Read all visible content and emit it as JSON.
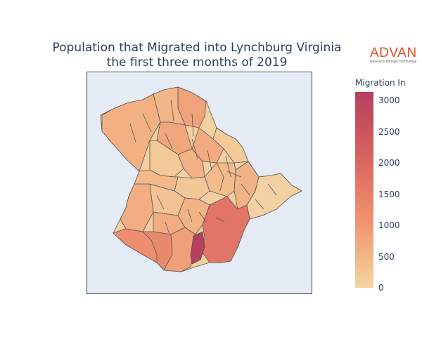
{
  "title_line1": "Population that Migrated into Lynchburg Virginia",
  "title_line2": "the first three months of 2019",
  "logo": {
    "word": "ADVAN",
    "tagline": "Research through Technology",
    "color": "#e2502a"
  },
  "legend": {
    "title": "Migration In",
    "range": [
      0,
      3150
    ],
    "ticks": [
      "3000",
      "2500",
      "2000",
      "1500",
      "1000",
      "500",
      "0"
    ],
    "colors": [
      "#f4d5a4",
      "#b8405e"
    ]
  },
  "chart_data": {
    "type": "choropleth",
    "region": "Lynchburg, Virginia",
    "colorscale": "sunsetdark-like",
    "value_range": [
      0,
      3150
    ],
    "approx_region_values": {
      "south_large_tract": 1500,
      "south_small_tract": 3100,
      "southwest_tract": 1200,
      "west_tract": 900,
      "north_tract": 900,
      "typical_tracts": 500
    }
  }
}
